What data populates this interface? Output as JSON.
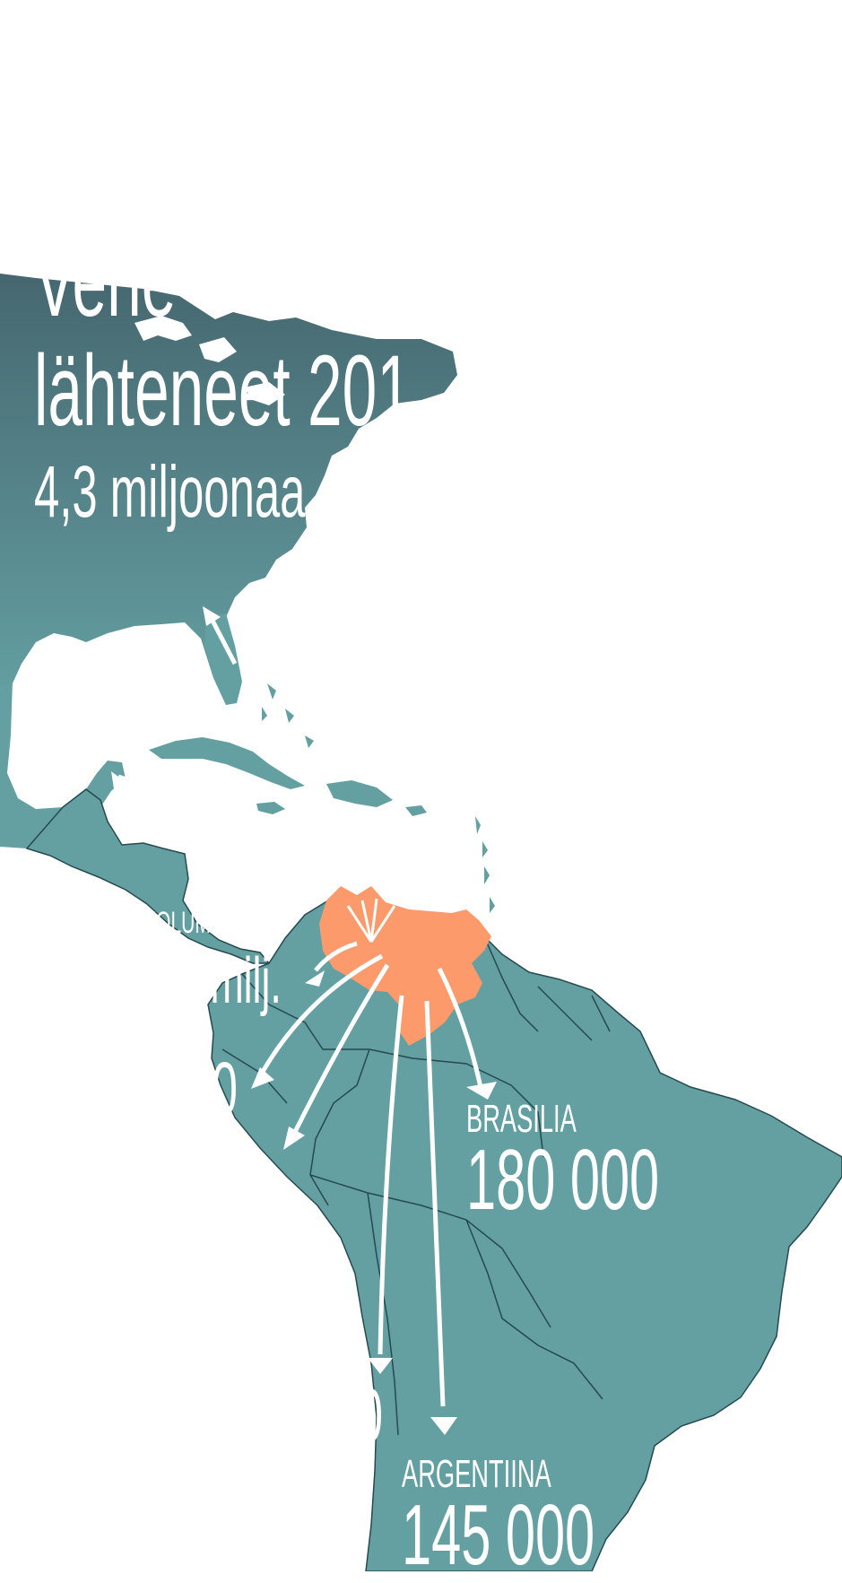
{
  "title_line_1": "Vene",
  "title_line_2": "lähteneet 201",
  "subtitle": "4,3 miljoonaa",
  "colors": {
    "land": "#64a0a2",
    "land_dark": "#466770",
    "border": "#254a50",
    "origin": "#fd9a6c",
    "arrow": "#ffffff",
    "background": "#ffffff"
  },
  "destinations": {
    "colombia_name": "KOLUMBIA",
    "colombia_value": "1,1 milj.",
    "brazil_name": "BRASILIA",
    "brazil_value": "180 000",
    "argentina_name": "ARGENTIINA",
    "argentina_value": "145 000",
    "ecuador_partial": "0",
    "peru_partial": "00",
    "chile_partial": "0"
  }
}
